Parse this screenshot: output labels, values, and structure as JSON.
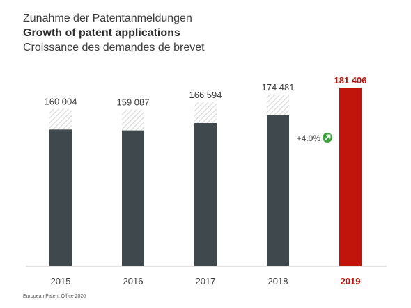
{
  "titles": {
    "de": "Zunahme der Patentanmeldungen",
    "en": "Growth of patent applications",
    "fr": "Croissance des demandes de brevet"
  },
  "footer": "European Patent Office 2020",
  "colors": {
    "bar": "#3f484d",
    "highlight": "#c1140b",
    "hatch": "#c8c8c8",
    "growth_icon": "#3aa13a",
    "axis": "#c8c8c8"
  },
  "chart_data": {
    "type": "bar",
    "categories": [
      "2015",
      "2016",
      "2017",
      "2018",
      "2019"
    ],
    "values": [
      160004,
      159087,
      166594,
      174481,
      181406
    ],
    "value_labels": [
      "160 004",
      "159 087",
      "166 594",
      "174 481",
      "181 406"
    ],
    "highlight_index": 4,
    "ylim": [
      0,
      181406
    ],
    "annotation": {
      "text": "+4.0%",
      "icon": "arrow-up-right-icon",
      "between": [
        "2018",
        "2019"
      ]
    },
    "grid": false
  }
}
